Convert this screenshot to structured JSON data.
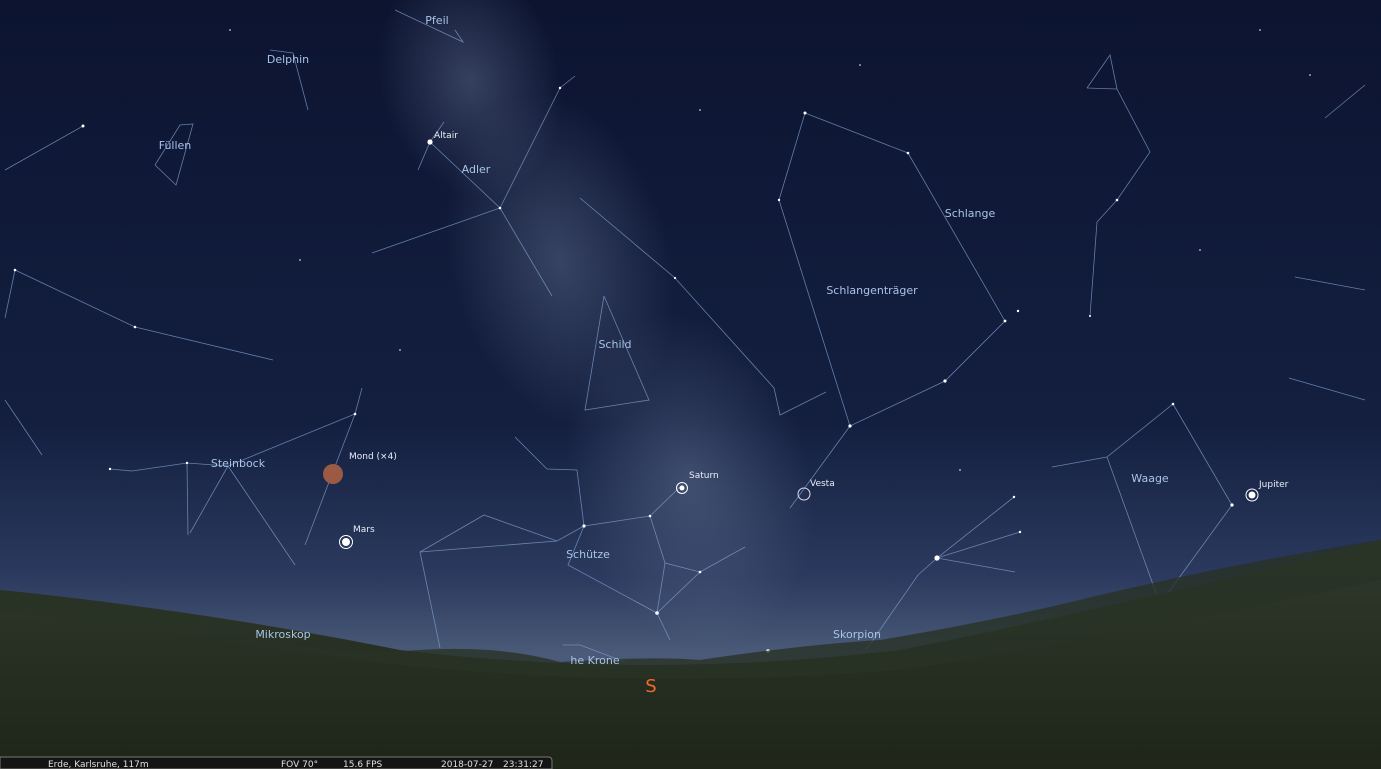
{
  "constellations": [
    "Pfeil",
    "Delphin",
    "Füllen",
    "Adler",
    "Schild",
    "Schlange",
    "Schlangenträger",
    "Steinbock",
    "Schütze",
    "Waage",
    "Mikroskop",
    "Skorpion",
    "he Krone"
  ],
  "objects": [
    "Altair",
    "Mond (×4)",
    "Mars",
    "Saturn",
    "Vesta",
    "Jupiter"
  ],
  "cardinal": "S",
  "status_bar": {
    "location": "Erde, Karlsruhe, 117m",
    "fov": "FOV 70°",
    "fps": "15.6 FPS",
    "date": "2018-07-27",
    "time": "23:31:27"
  }
}
